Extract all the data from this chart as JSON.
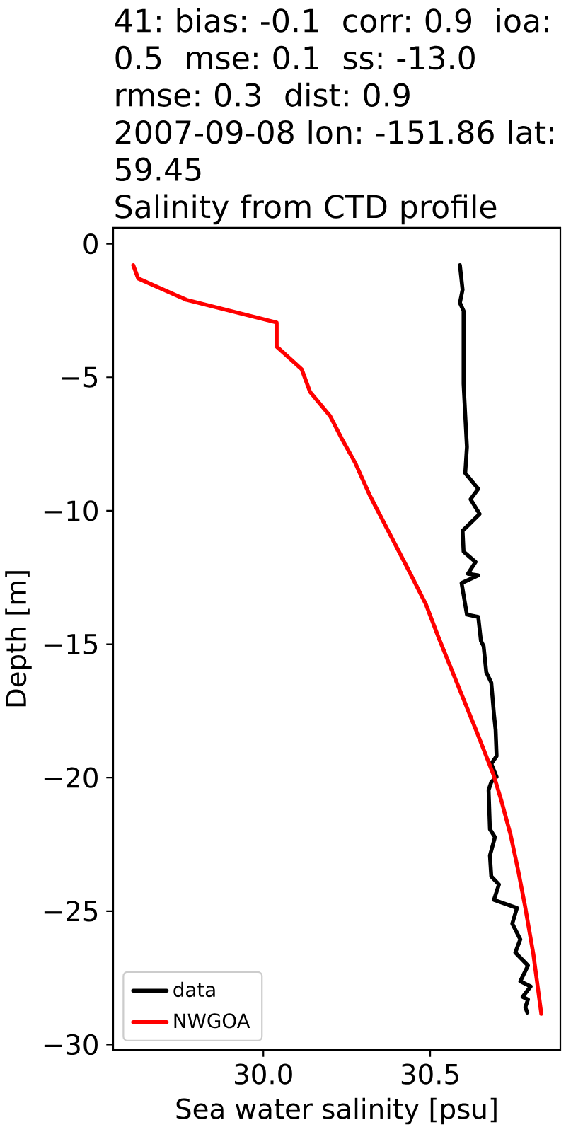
{
  "chart_data": {
    "type": "line",
    "title": "41: bias: -0.1  corr: 0.9  ioa: 0.5  mse: 0.1  ss: -13.0  rmse: 0.3  dist: 0.9",
    "subtitle": "2007-09-08 lon: -151.86 lat: 59.45",
    "annotations": [
      "Salinity from CTD profile"
    ],
    "xlabel": "Sea water salinity [psu]",
    "ylabel": "Depth [m]",
    "xlim": [
      29.55,
      30.89
    ],
    "ylim": [
      -30.2,
      0.6
    ],
    "xticks": [
      {
        "value": 30,
        "label": "30.0"
      },
      {
        "value": 30.5,
        "label": "30.5"
      }
    ],
    "yticks": [
      {
        "value": -30,
        "label": "−30"
      },
      {
        "value": -25,
        "label": "−25"
      },
      {
        "value": -20,
        "label": "−20"
      },
      {
        "value": -15,
        "label": "−15"
      },
      {
        "value": -10,
        "label": "−10"
      },
      {
        "value": -5,
        "label": "−5"
      },
      0
    ],
    "legend": "bottom left",
    "series": [
      {
        "name": "data",
        "color": "#000000",
        "x": [
          30.589,
          30.597,
          30.589,
          30.6,
          30.6,
          30.61,
          30.605,
          30.644,
          30.621,
          30.648,
          30.597,
          30.6,
          30.636,
          30.613,
          30.644,
          30.594,
          30.61,
          30.644,
          30.652,
          30.66,
          30.668,
          30.683,
          30.691,
          30.696,
          30.699,
          30.683,
          30.699,
          30.683,
          30.675,
          30.679,
          30.694,
          30.679,
          30.683,
          30.706,
          30.691,
          30.76,
          30.746,
          30.77,
          30.755,
          30.793,
          30.77,
          30.801,
          30.777,
          30.793,
          30.785,
          30.791
        ],
        "values": [
          -0.8,
          -1.72,
          -2.21,
          -2.51,
          -5.25,
          -7.61,
          -8.59,
          -9.18,
          -9.57,
          -10.12,
          -10.75,
          -11.53,
          -11.92,
          -12.36,
          -12.42,
          -12.71,
          -13.89,
          -13.98,
          -14.87,
          -15.07,
          -16.05,
          -16.44,
          -17.62,
          -18.21,
          -19.19,
          -19.48,
          -19.97,
          -20.17,
          -20.46,
          -21.93,
          -22.23,
          -22.92,
          -23.7,
          -24.0,
          -24.58,
          -24.88,
          -25.47,
          -26.06,
          -26.55,
          -27.04,
          -27.63,
          -27.82,
          -28.21,
          -28.31,
          -28.6,
          -28.8
        ]
      },
      {
        "name": "NWGOA",
        "color": "#ff0000",
        "x": [
          29.61,
          29.625,
          29.77,
          30.04,
          30.04,
          30.115,
          30.14,
          30.2,
          30.235,
          30.275,
          30.32,
          30.43,
          30.487,
          30.525,
          30.593,
          30.64,
          30.69,
          30.713,
          30.741,
          30.764,
          30.784,
          30.809,
          30.833
        ],
        "values": [
          -0.8,
          -1.3,
          -2.1,
          -2.95,
          -3.85,
          -4.7,
          -5.55,
          -6.45,
          -7.3,
          -8.2,
          -9.45,
          -12.1,
          -13.5,
          -14.75,
          -16.85,
          -18.3,
          -19.9,
          -20.85,
          -22.15,
          -23.5,
          -24.8,
          -26.6,
          -28.85
        ]
      }
    ]
  }
}
